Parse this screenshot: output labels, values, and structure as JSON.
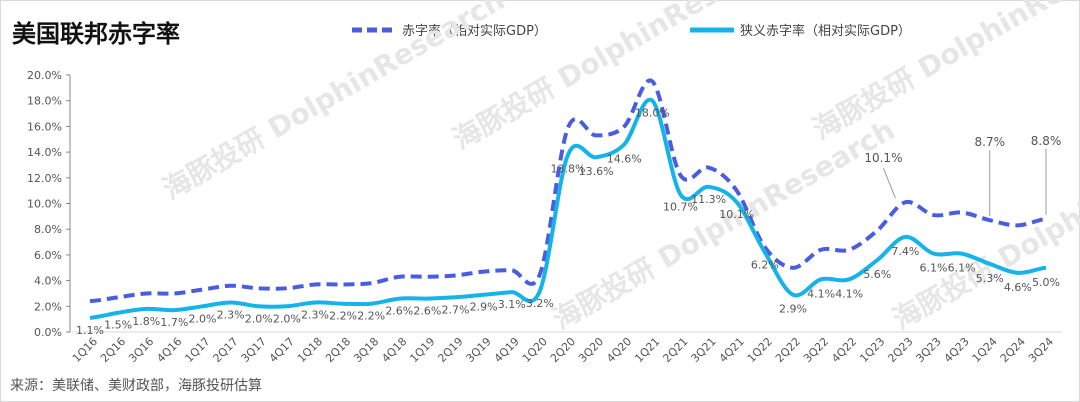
{
  "chart_data": {
    "type": "line",
    "title": "美国联邦赤字率",
    "categories": [
      "1Q16",
      "2Q16",
      "3Q16",
      "4Q16",
      "1Q17",
      "2Q17",
      "3Q17",
      "4Q17",
      "1Q18",
      "2Q18",
      "3Q18",
      "4Q18",
      "1Q19",
      "2Q19",
      "3Q19",
      "4Q19",
      "1Q20",
      "2Q20",
      "3Q20",
      "4Q20",
      "1Q21",
      "2Q21",
      "3Q21",
      "4Q21",
      "1Q22",
      "2Q22",
      "3Q22",
      "4Q22",
      "1Q23",
      "2Q23",
      "3Q23",
      "4Q23",
      "1Q24",
      "2Q24",
      "3Q24"
    ],
    "ylim": [
      0,
      20
    ],
    "yticks": [
      "0.0%",
      "2.0%",
      "4.0%",
      "6.0%",
      "8.0%",
      "10.0%",
      "12.0%",
      "14.0%",
      "16.0%",
      "18.0%",
      "20.0%"
    ],
    "legend_position": "top",
    "series": [
      {
        "name": "赤字率（相对实际GDP）",
        "color": "#4a5de0",
        "style": "dashed",
        "values": [
          2.4,
          2.7,
          3.0,
          3.0,
          3.3,
          3.6,
          3.4,
          3.4,
          3.7,
          3.7,
          3.8,
          4.3,
          4.3,
          4.4,
          4.7,
          4.8,
          4.5,
          15.9,
          15.3,
          16.0,
          19.5,
          12.2,
          12.8,
          11.0,
          6.6,
          5.0,
          6.4,
          6.4,
          7.9,
          10.1,
          9.1,
          9.3,
          8.7,
          8.3,
          8.8
        ],
        "labels": {
          "29": "10.1%",
          "32": "8.7%",
          "34": "8.8%"
        }
      },
      {
        "name": "狭义赤字率（相对实际GDP）",
        "color": "#14b4ea",
        "style": "solid",
        "values": [
          1.1,
          1.5,
          1.8,
          1.7,
          2.0,
          2.3,
          2.0,
          2.0,
          2.3,
          2.2,
          2.2,
          2.6,
          2.6,
          2.7,
          2.9,
          3.1,
          3.2,
          13.8,
          13.6,
          14.6,
          18.0,
          10.7,
          11.3,
          10.1,
          6.2,
          2.9,
          4.1,
          4.1,
          5.6,
          7.4,
          6.1,
          6.1,
          5.3,
          4.6,
          5.0
        ],
        "value_labels": [
          "1.1%",
          "1.5%",
          "1.8%",
          "1.7%",
          "2.0%",
          "2.3%",
          "2.0%",
          "2.0%",
          "2.3%",
          "2.2%",
          "2.2%",
          "2.6%",
          "2.6%",
          "2.7%",
          "2.9%",
          "3.1%",
          "3.2%",
          "13.8%",
          "13.6%",
          "14.6%",
          "18.0%",
          "10.7%",
          "11.3%",
          "10.1%",
          "6.2%",
          "2.9%",
          "4.1%",
          "4.1%",
          "5.6%",
          "7.4%",
          "6.1%",
          "6.1%",
          "5.3%",
          "4.6%",
          "5.0%"
        ]
      }
    ],
    "source": "来源：美联储、美财政部，海豚投研估算",
    "watermark": "海豚投研 DolphinResearch"
  }
}
